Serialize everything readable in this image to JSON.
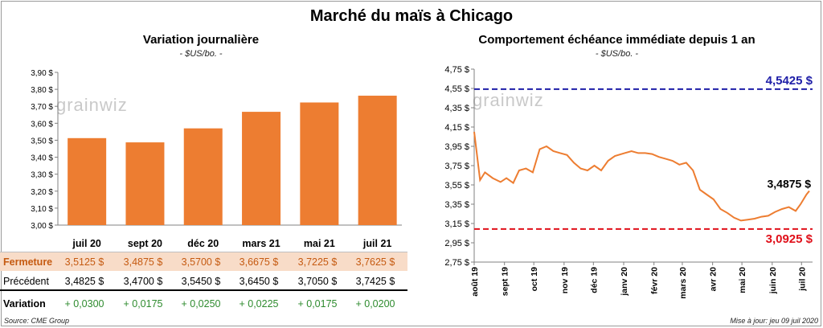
{
  "header": {
    "title": "Marché du maïs à Chicago"
  },
  "left_panel": {
    "title": "Variation journalière",
    "unit": "- $US/bo. -",
    "logo": "grainwiz"
  },
  "right_panel": {
    "title": "Comportement  échéance immédiate depuis 1 an",
    "unit": "- $US/bo. -",
    "logo": "grainwiz"
  },
  "table": {
    "rows": [
      {
        "label": "Fermeture",
        "values": [
          "3,5125  $",
          "3,4875  $",
          "3,5700  $",
          "3,6675  $",
          "3,7225  $",
          "3,7625  $"
        ]
      },
      {
        "label": "Précédent",
        "values": [
          "3,4825  $",
          "3,4700  $",
          "3,5450  $",
          "3,6450  $",
          "3,7050  $",
          "3,7425  $"
        ]
      },
      {
        "label": "Variation",
        "values": [
          "+ 0,0300",
          "+ 0,0175",
          "+ 0,0250",
          "+ 0,0225",
          "+ 0,0175",
          "+ 0,0200"
        ]
      }
    ]
  },
  "footer": {
    "source": "Source: CME Group",
    "updated": "Mise à jour: jeu 09 juil 2020"
  },
  "colors": {
    "bar": "#ed7d31",
    "line": "#ed7d31",
    "high": "#1f1fa8",
    "low": "#e0101a",
    "variation": "#2e8b2e"
  },
  "chart_data": [
    {
      "type": "bar",
      "categories": [
        "juil 20",
        "sept 20",
        "déc 20",
        "mars 21",
        "mai 21",
        "juil 21"
      ],
      "values": [
        3.5125,
        3.4875,
        3.57,
        3.6675,
        3.7225,
        3.7625
      ],
      "title": "Variation journalière",
      "ylabel": "- $US/bo. -",
      "ylim": [
        3.0,
        3.9
      ],
      "yticks": [
        "3,00 $",
        "3,10 $",
        "3,20 $",
        "3,30 $",
        "3,40 $",
        "3,50 $",
        "3,60 $",
        "3,70 $",
        "3,80 $",
        "3,90 $"
      ],
      "grid": false
    },
    {
      "type": "line",
      "title": "Comportement  échéance immédiate depuis 1 an",
      "ylabel": "- $US/bo. -",
      "ylim": [
        2.75,
        4.75
      ],
      "yticks": [
        "2,75 $",
        "2,95 $",
        "3,15 $",
        "3,35 $",
        "3,55 $",
        "3,75 $",
        "3,95 $",
        "4,15 $",
        "4,35 $",
        "4,55 $",
        "4,75 $"
      ],
      "xticks": [
        "août 19",
        "sept 19",
        "oct 19",
        "nov 19",
        "déc 19",
        "janv 20",
        "févr 20",
        "mars 20",
        "avr 20",
        "mai 20",
        "juin 20",
        "juil 20"
      ],
      "x": [
        "2019-08-01",
        "2019-08-07",
        "2019-08-12",
        "2019-08-20",
        "2019-08-28",
        "2019-09-03",
        "2019-09-10",
        "2019-09-16",
        "2019-09-23",
        "2019-09-30",
        "2019-10-07",
        "2019-10-14",
        "2019-10-21",
        "2019-10-28",
        "2019-11-04",
        "2019-11-11",
        "2019-11-18",
        "2019-11-25",
        "2019-12-02",
        "2019-12-09",
        "2019-12-16",
        "2019-12-23",
        "2020-01-02",
        "2020-01-09",
        "2020-01-16",
        "2020-01-23",
        "2020-01-30",
        "2020-02-06",
        "2020-02-13",
        "2020-02-20",
        "2020-02-27",
        "2020-03-05",
        "2020-03-12",
        "2020-03-19",
        "2020-03-26",
        "2020-04-02",
        "2020-04-09",
        "2020-04-16",
        "2020-04-23",
        "2020-04-30",
        "2020-05-07",
        "2020-05-14",
        "2020-05-21",
        "2020-05-28",
        "2020-06-04",
        "2020-06-11",
        "2020-06-18",
        "2020-06-25",
        "2020-06-30",
        "2020-07-06",
        "2020-07-09"
      ],
      "series": [
        {
          "values": [
            4.1,
            3.6,
            3.68,
            3.62,
            3.58,
            3.62,
            3.57,
            3.7,
            3.72,
            3.68,
            3.92,
            3.95,
            3.9,
            3.88,
            3.86,
            3.78,
            3.72,
            3.7,
            3.75,
            3.7,
            3.8,
            3.85,
            3.88,
            3.9,
            3.88,
            3.88,
            3.87,
            3.84,
            3.82,
            3.8,
            3.76,
            3.78,
            3.7,
            3.5,
            3.45,
            3.4,
            3.3,
            3.26,
            3.21,
            3.18,
            3.19,
            3.2,
            3.22,
            3.23,
            3.27,
            3.3,
            3.32,
            3.28,
            3.35,
            3.45,
            3.4875
          ]
        }
      ],
      "reference_lines": [
        {
          "label": "4,5425 $",
          "value": 4.5425,
          "style": "dashed"
        },
        {
          "label": "3,0925 $",
          "value": 3.0925,
          "style": "dashed"
        }
      ],
      "last_value_label": "3,4875 $",
      "grid": false
    }
  ]
}
